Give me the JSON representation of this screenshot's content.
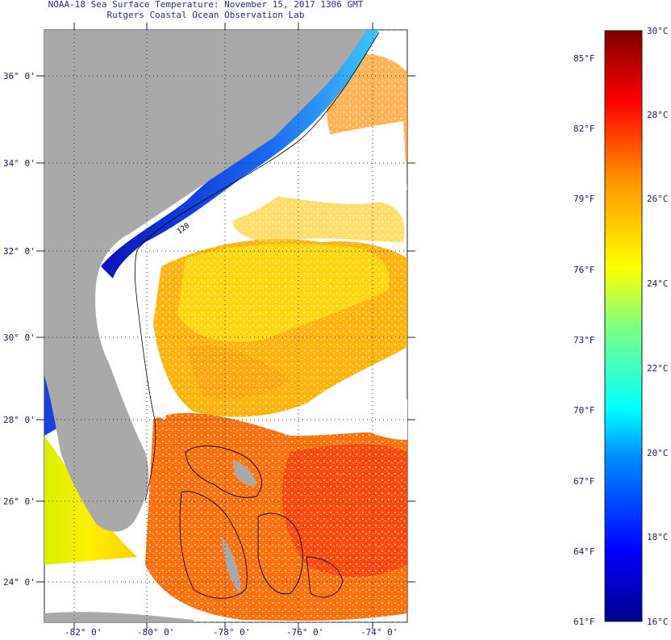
{
  "title_line1": "NOAA-18 Sea Surface Temperature:  November 15, 2017 1306 GMT",
  "title_line2": "Rutgers Coastal Ocean Observation Lab",
  "lat_labels": [
    "36° 0'",
    "34° 0'",
    "32° 0'",
    "30° 0'",
    "28° 0'",
    "26° 0'",
    "24° 0'"
  ],
  "lon_labels": [
    "-82° 0'",
    "-80° 0'",
    "-78° 0'",
    "-76° 0'",
    "-74° 0'"
  ],
  "isobath_label": "120",
  "colorbar": {
    "fahrenheit_labels": [
      "85°F",
      "82°F",
      "79°F",
      "76°F",
      "73°F",
      "70°F",
      "67°F",
      "64°F",
      "61°F"
    ],
    "celsius_labels": [
      "30°C",
      "28°C",
      "26°C",
      "24°C",
      "22°C",
      "20°C",
      "18°C",
      "16°C"
    ],
    "range_c": [
      16,
      30
    ]
  },
  "colors": {
    "land": "#a9a9a9",
    "cold": "#0a2fd8",
    "warm": "#ff4a00",
    "mid": "#ffdc00"
  }
}
